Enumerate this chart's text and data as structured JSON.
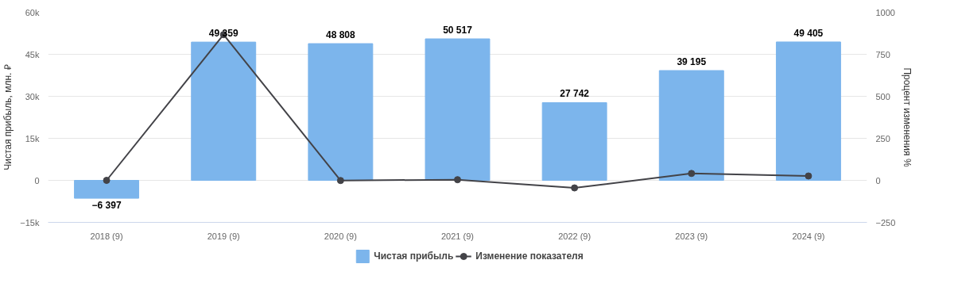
{
  "chart_data": {
    "type": "bar",
    "xlabel": null,
    "ylabel": "Чистая прибыль, млн. ₽",
    "y2label": "Процент изменения %",
    "categories": [
      "2018 (9)",
      "2019 (9)",
      "2020 (9)",
      "2021 (9)",
      "2022 (9)",
      "2023 (9)",
      "2024 (9)"
    ],
    "series": [
      {
        "name": "Чистая прибыль",
        "color": "#7cb5ec",
        "values": [
          -6397,
          49359,
          48808,
          50517,
          27742,
          39195,
          49405
        ],
        "value_labels": [
          "−6 397",
          "49 359",
          "48 808",
          "50 517",
          "27 742",
          "39 195",
          "49 405"
        ]
      },
      {
        "name": "Изменение показателя",
        "type": "line",
        "axis": "y2",
        "color": "#434348",
        "marker": "circle",
        "values": [
          0,
          867,
          -1,
          4,
          -45,
          41,
          26
        ]
      }
    ],
    "ylim": [
      -15000,
      60000
    ],
    "yticks": [
      {
        "value": -15000,
        "label": "−15k"
      },
      0,
      {
        "value": 15000,
        "label": "15k"
      },
      {
        "value": 30000,
        "label": "30k"
      },
      {
        "value": 45000,
        "label": "45k"
      },
      {
        "value": 60000,
        "label": "60k"
      }
    ],
    "y2lim": [
      -250,
      1000
    ],
    "y2ticks": [
      -250,
      0,
      250,
      500,
      750,
      1000
    ],
    "grid": "y",
    "legend": "bottom"
  }
}
